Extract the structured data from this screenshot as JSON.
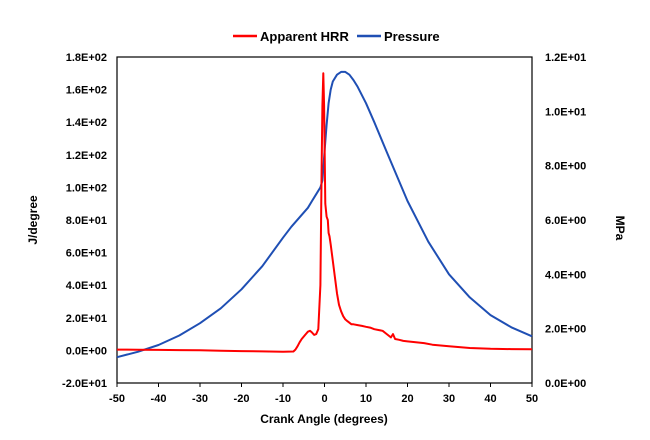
{
  "chart_data": {
    "type": "line",
    "title": "",
    "xlabel": "Crank Angle (degrees)",
    "ylabel": "J/degree",
    "y2label": "MPa",
    "xlim": [
      -50,
      50
    ],
    "ylim": [
      -20,
      180
    ],
    "y2lim": [
      0,
      12
    ],
    "x_ticks": [
      -50,
      -40,
      -30,
      -20,
      -10,
      0,
      10,
      20,
      30,
      40,
      50
    ],
    "x_tick_labels": [
      "-50",
      "-40",
      "-30",
      "-20",
      "-10",
      "0",
      "10",
      "20",
      "30",
      "40",
      "50"
    ],
    "y_ticks": [
      -20,
      0,
      20,
      40,
      60,
      80,
      100,
      120,
      140,
      160,
      180
    ],
    "y_tick_labels": [
      "-2.0E+01",
      "0.0E+00",
      "2.0E+01",
      "4.0E+01",
      "6.0E+01",
      "8.0E+01",
      "1.0E+02",
      "1.2E+02",
      "1.4E+02",
      "1.6E+02",
      "1.8E+02"
    ],
    "y2_ticks": [
      0,
      2,
      4,
      6,
      8,
      10,
      12
    ],
    "y2_tick_labels": [
      "0.0E+00",
      "2.0E+00",
      "4.0E+00",
      "6.0E+00",
      "8.0E+00",
      "1.0E+01",
      "1.2E+01"
    ],
    "grid": false,
    "legend_position": "top-center",
    "series": [
      {
        "name": "Apparent HRR",
        "axis": "left",
        "color": "#ff0000",
        "x": [
          -50,
          -45,
          -40,
          -35,
          -30,
          -25,
          -20,
          -15,
          -10,
          -7.5,
          -7,
          -6.5,
          -6,
          -5.5,
          -5,
          -4.5,
          -4,
          -3.5,
          -3,
          -2.5,
          -2,
          -1.5,
          -1,
          -0.7,
          -0.5,
          -0.3,
          -0.1,
          0.2,
          0.5,
          0.8,
          1,
          1.2,
          1.5,
          2,
          2.5,
          3,
          3.5,
          4,
          4.5,
          5,
          5.5,
          6,
          6.5,
          7,
          8,
          9,
          10,
          11,
          12,
          13,
          14,
          15,
          16,
          16.5,
          17,
          18,
          19,
          20,
          22,
          24,
          26,
          28,
          30,
          35,
          40,
          45,
          50
        ],
        "y": [
          0.5,
          0.4,
          0.3,
          0.2,
          0.1,
          -0.2,
          -0.4,
          -0.6,
          -0.8,
          -0.7,
          0.5,
          2.5,
          5,
          7,
          8.5,
          10,
          11.5,
          12,
          11,
          9.5,
          10,
          13,
          40,
          110,
          150,
          170,
          150,
          90,
          82,
          80,
          72,
          70,
          65,
          55,
          45,
          35,
          28,
          24,
          21,
          19,
          18,
          17,
          16,
          16,
          15.5,
          15,
          14.5,
          14,
          13,
          12.5,
          12,
          10,
          8,
          10,
          7,
          6.5,
          5.8,
          5.5,
          5,
          4.5,
          3.5,
          3,
          2.5,
          1.5,
          1,
          0.8,
          0.7
        ]
      },
      {
        "name": "Pressure",
        "axis": "right",
        "color": "#1f4fb4",
        "x": [
          -50,
          -45,
          -40,
          -35,
          -30,
          -25,
          -20,
          -15,
          -10,
          -8,
          -6,
          -4,
          -3,
          -2,
          -1,
          -0.5,
          0,
          0.5,
          1,
          1.5,
          2,
          3,
          4,
          5,
          6,
          7,
          8,
          10,
          12,
          15,
          20,
          25,
          30,
          35,
          40,
          45,
          50
        ],
        "y": [
          0.95,
          1.15,
          1.4,
          1.75,
          2.2,
          2.75,
          3.45,
          4.3,
          5.35,
          5.75,
          6.1,
          6.45,
          6.7,
          6.95,
          7.2,
          7.45,
          8.5,
          9.5,
          10.3,
          10.8,
          11.1,
          11.35,
          11.45,
          11.45,
          11.35,
          11.15,
          10.9,
          10.3,
          9.6,
          8.5,
          6.7,
          5.2,
          4.0,
          3.15,
          2.5,
          2.05,
          1.72
        ]
      }
    ]
  }
}
